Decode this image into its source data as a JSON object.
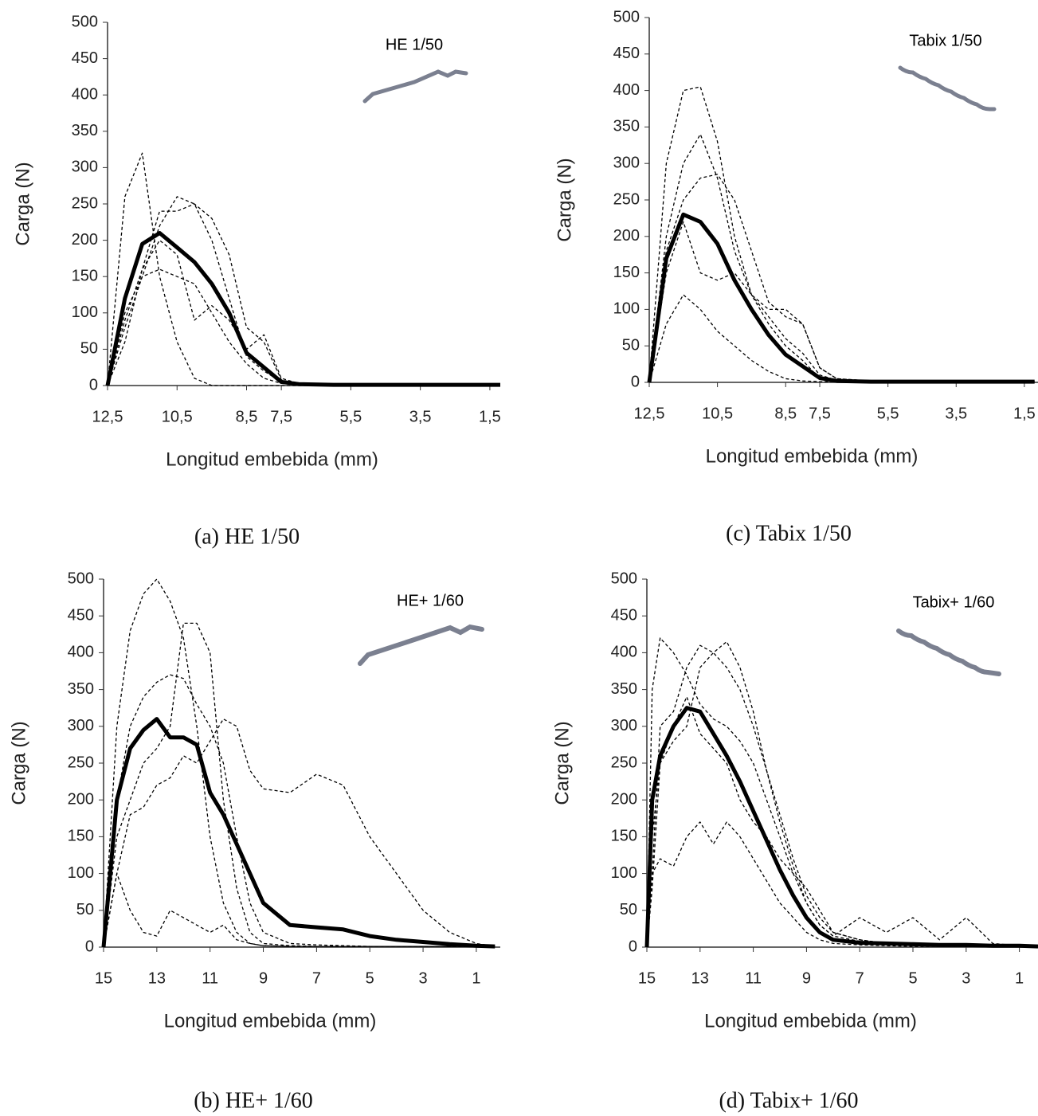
{
  "chart_data": [
    {
      "type": "line",
      "caption": "(a) HE 1/50",
      "annotation": "HE 1/50",
      "xlabel": "Longitud embebida (mm)",
      "ylabel": "Carga (N)",
      "xlim": [
        12.5,
        1.2
      ],
      "ylim": [
        0,
        500
      ],
      "xticks": [
        {
          "value": 12.5,
          "label": "12,5"
        },
        {
          "value": 10.5,
          "label": "10,5"
        },
        {
          "value": 8.5,
          "label": "8,5"
        },
        {
          "value": 7.5,
          "label": "7,5"
        },
        {
          "value": 5.5,
          "label": "5,5"
        },
        {
          "value": 3.5,
          "label": "3,5"
        },
        {
          "value": 1.5,
          "label": "1,5"
        }
      ],
      "yticks": [
        0,
        50,
        100,
        150,
        200,
        250,
        300,
        350,
        400,
        450,
        500
      ],
      "x": [
        12.5,
        12,
        11.5,
        11,
        10.5,
        10,
        9.5,
        9,
        8.5,
        8,
        7.5,
        7,
        6,
        5,
        4,
        3,
        2,
        1.2
      ],
      "series": [
        {
          "color": "#000000",
          "line_style": "dashed",
          "values": [
            0,
            260,
            320,
            150,
            60,
            10,
            0,
            0,
            0,
            0,
            0,
            0,
            0,
            0,
            0,
            0,
            0,
            0
          ]
        },
        {
          "color": "#000000",
          "line_style": "dashed",
          "values": [
            0,
            100,
            150,
            220,
            260,
            250,
            200,
            120,
            40,
            20,
            5,
            2,
            1,
            1,
            1,
            1,
            1,
            1
          ]
        },
        {
          "color": "#000000",
          "line_style": "dashed",
          "values": [
            0,
            80,
            150,
            160,
            150,
            140,
            100,
            60,
            30,
            10,
            3,
            1,
            1,
            1,
            1,
            1,
            1,
            1
          ]
        },
        {
          "color": "#000000",
          "line_style": "dashed",
          "values": [
            0,
            60,
            160,
            240,
            240,
            250,
            230,
            180,
            80,
            60,
            8,
            2,
            1,
            1,
            1,
            1,
            1,
            1
          ]
        },
        {
          "color": "#000000",
          "line_style": "dashed",
          "values": [
            0,
            90,
            160,
            200,
            180,
            90,
            110,
            90,
            50,
            70,
            10,
            3,
            1,
            1,
            1,
            1,
            1,
            1
          ]
        },
        {
          "color": "#000000",
          "line_style": "solid",
          "values": [
            0,
            120,
            195,
            210,
            190,
            170,
            140,
            100,
            45,
            25,
            5,
            2,
            1,
            1,
            1,
            1,
            1,
            1
          ]
        }
      ]
    },
    {
      "type": "line",
      "caption": "(b) HE+ 1/60",
      "annotation": "HE+ 1/60",
      "xlabel": "Longitud embebida (mm)",
      "ylabel": "Carga (N)",
      "xlim": [
        15,
        0.1
      ],
      "ylim": [
        0,
        500
      ],
      "xticks": [
        15,
        13,
        11,
        9,
        7,
        5,
        3,
        1
      ],
      "yticks": [
        0,
        50,
        100,
        150,
        200,
        250,
        300,
        350,
        400,
        450,
        500
      ],
      "x": [
        15,
        14.5,
        14,
        13.5,
        13,
        12.5,
        12,
        11.5,
        11,
        10.5,
        10,
        9.5,
        9,
        8,
        7,
        6,
        5,
        4,
        3,
        2,
        1,
        0.3
      ],
      "series": [
        {
          "color": "#000000",
          "line_style": "dashed",
          "values": [
            0,
            300,
            430,
            480,
            500,
            470,
            420,
            300,
            150,
            60,
            20,
            5,
            2,
            1,
            1,
            1,
            1,
            1,
            1,
            1,
            1,
            1
          ]
        },
        {
          "color": "#000000",
          "line_style": "dashed",
          "values": [
            0,
            200,
            300,
            340,
            360,
            370,
            365,
            330,
            300,
            250,
            150,
            60,
            20,
            5,
            3,
            2,
            1,
            1,
            1,
            1,
            1,
            1
          ]
        },
        {
          "color": "#000000",
          "line_style": "dashed",
          "values": [
            0,
            150,
            200,
            250,
            270,
            300,
            440,
            440,
            400,
            200,
            80,
            20,
            5,
            2,
            1,
            1,
            1,
            1,
            1,
            1,
            1,
            1
          ]
        },
        {
          "color": "#000000",
          "line_style": "dashed",
          "values": [
            0,
            100,
            180,
            190,
            220,
            230,
            260,
            250,
            280,
            310,
            300,
            240,
            215,
            210,
            235,
            220,
            150,
            100,
            50,
            20,
            5,
            1
          ]
        },
        {
          "color": "#000000",
          "line_style": "dashed",
          "values": [
            0,
            100,
            50,
            20,
            15,
            50,
            40,
            30,
            20,
            30,
            10,
            5,
            2,
            1,
            1,
            1,
            1,
            1,
            1,
            1,
            1,
            1
          ]
        },
        {
          "color": "#000000",
          "line_style": "solid",
          "values": [
            0,
            200,
            270,
            295,
            310,
            285,
            285,
            275,
            210,
            180,
            140,
            100,
            60,
            30,
            27,
            24,
            15,
            10,
            7,
            4,
            2,
            1
          ]
        }
      ]
    },
    {
      "type": "line",
      "caption": "(c) Tabix 1/50",
      "annotation": "Tabix 1/50",
      "xlabel": "Longitud embebida (mm)",
      "ylabel": "Carga (N)",
      "xlim": [
        12.5,
        1.1
      ],
      "ylim": [
        0,
        500
      ],
      "xticks": [
        {
          "value": 12.5,
          "label": "12,5"
        },
        {
          "value": 10.5,
          "label": "10,5"
        },
        {
          "value": 8.5,
          "label": "8,5"
        },
        {
          "value": 7.5,
          "label": "7,5"
        },
        {
          "value": 5.5,
          "label": "5,5"
        },
        {
          "value": 3.5,
          "label": "3,5"
        },
        {
          "value": 1.5,
          "label": "1,5"
        }
      ],
      "yticks": [
        0,
        50,
        100,
        150,
        200,
        250,
        300,
        350,
        400,
        450,
        500
      ],
      "x": [
        12.5,
        12,
        11.5,
        11,
        10.5,
        10,
        9.5,
        9,
        8.5,
        8,
        7.5,
        7,
        6,
        5,
        4,
        3,
        2,
        1.2
      ],
      "series": [
        {
          "color": "#000000",
          "line_style": "dashed",
          "values": [
            0,
            300,
            400,
            405,
            330,
            200,
            120,
            80,
            50,
            30,
            5,
            2,
            1,
            1,
            1,
            1,
            1,
            1
          ]
        },
        {
          "color": "#000000",
          "line_style": "dashed",
          "values": [
            0,
            200,
            300,
            340,
            280,
            180,
            120,
            90,
            60,
            40,
            10,
            3,
            1,
            1,
            1,
            1,
            1,
            1
          ]
        },
        {
          "color": "#000000",
          "line_style": "dashed",
          "values": [
            0,
            180,
            250,
            280,
            285,
            250,
            180,
            110,
            90,
            80,
            20,
            5,
            2,
            1,
            1,
            1,
            1,
            1
          ]
        },
        {
          "color": "#000000",
          "line_style": "dashed",
          "values": [
            0,
            80,
            120,
            100,
            70,
            50,
            30,
            15,
            5,
            2,
            1,
            1,
            1,
            1,
            1,
            1,
            1,
            1
          ]
        },
        {
          "color": "#000000",
          "line_style": "dashed",
          "values": [
            0,
            150,
            220,
            150,
            140,
            150,
            120,
            100,
            100,
            80,
            20,
            5,
            2,
            1,
            1,
            1,
            1,
            1
          ]
        },
        {
          "color": "#000000",
          "line_style": "solid",
          "values": [
            0,
            170,
            230,
            220,
            190,
            140,
            100,
            65,
            38,
            22,
            6,
            2,
            1,
            1,
            1,
            1,
            1,
            1
          ]
        }
      ]
    },
    {
      "type": "line",
      "caption": "(d) Tabix+ 1/60",
      "annotation": "Tabix+ 1/60",
      "xlabel": "Longitud embebida (mm)",
      "ylabel": "Carga (N)",
      "xlim": [
        15,
        0.3
      ],
      "ylim": [
        0,
        500
      ],
      "xticks": [
        15,
        13,
        11,
        9,
        7,
        5,
        3,
        1
      ],
      "yticks": [
        0,
        50,
        100,
        150,
        200,
        250,
        300,
        350,
        400,
        450,
        500
      ],
      "x": [
        15,
        14.8,
        14.5,
        14,
        13.5,
        13,
        12.5,
        12,
        11.5,
        11,
        10.5,
        10,
        9.5,
        9,
        8.5,
        8,
        7,
        6,
        5,
        4,
        3,
        2,
        1,
        0.3
      ],
      "series": [
        {
          "color": "#000000",
          "line_style": "dashed",
          "values": [
            0,
            350,
            420,
            400,
            370,
            330,
            310,
            300,
            280,
            250,
            200,
            150,
            100,
            60,
            30,
            15,
            40,
            20,
            40,
            10,
            40,
            5,
            2,
            1
          ]
        },
        {
          "color": "#000000",
          "line_style": "dashed",
          "values": [
            0,
            100,
            300,
            320,
            380,
            410,
            400,
            380,
            350,
            300,
            240,
            180,
            120,
            70,
            40,
            20,
            10,
            5,
            3,
            2,
            2,
            1,
            1,
            1
          ]
        },
        {
          "color": "#000000",
          "line_style": "dashed",
          "values": [
            0,
            80,
            250,
            280,
            300,
            380,
            400,
            415,
            380,
            320,
            240,
            170,
            110,
            60,
            30,
            15,
            8,
            4,
            2,
            1,
            1,
            1,
            1,
            1
          ]
        },
        {
          "color": "#000000",
          "line_style": "dashed",
          "values": [
            0,
            100,
            120,
            110,
            150,
            170,
            140,
            170,
            150,
            120,
            90,
            60,
            40,
            20,
            10,
            5,
            3,
            2,
            1,
            1,
            1,
            1,
            1,
            1
          ]
        },
        {
          "color": "#000000",
          "line_style": "dashed",
          "values": [
            0,
            150,
            250,
            300,
            340,
            290,
            270,
            250,
            200,
            170,
            150,
            120,
            100,
            80,
            50,
            20,
            10,
            5,
            3,
            2,
            1,
            1,
            1,
            1
          ]
        },
        {
          "color": "#000000",
          "line_style": "solid",
          "values": [
            0,
            200,
            260,
            300,
            325,
            320,
            290,
            260,
            225,
            185,
            145,
            105,
            70,
            40,
            20,
            10,
            6,
            5,
            4,
            3,
            3,
            2,
            2,
            1
          ]
        }
      ]
    }
  ]
}
